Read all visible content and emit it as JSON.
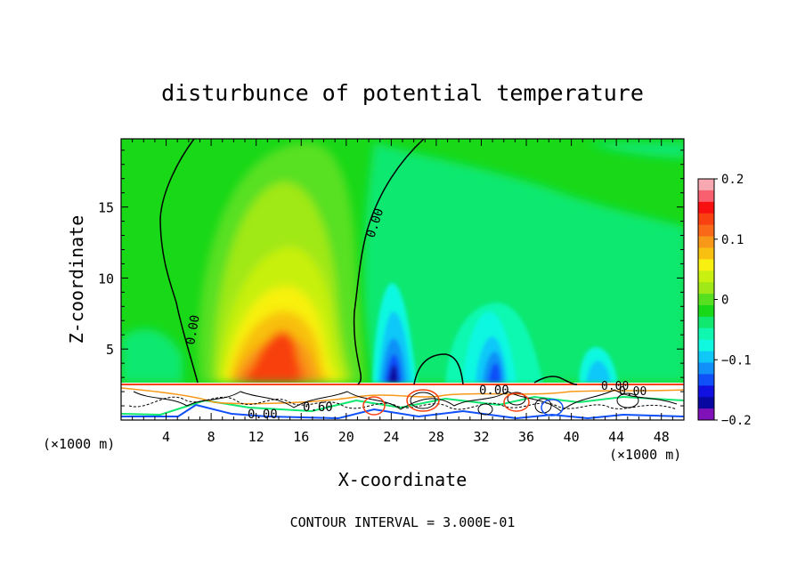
{
  "chart_data": {
    "type": "contour",
    "title": "disturbunce of potential temperature",
    "xlabel": "X-coordinate",
    "ylabel": "Z-coordinate",
    "x_unit_label": "(×1000 m)",
    "x_unit_label_right": "(×1000 m)",
    "xlim": [
      0,
      50
    ],
    "ylim": [
      0,
      19.8
    ],
    "x_ticks": [
      4,
      8,
      12,
      16,
      20,
      24,
      28,
      32,
      36,
      40,
      44,
      48
    ],
    "y_ticks": [
      5,
      10,
      15
    ],
    "footer": "CONTOUR INTERVAL = 3.000E-01",
    "colorbar": {
      "min": -0.2,
      "max": 0.2,
      "tick_labels": [
        "0.2",
        "0.1",
        "0",
        "−0.1",
        "−0.2"
      ],
      "tick_values": [
        0.2,
        0.1,
        0,
        -0.1,
        -0.2
      ],
      "colors": [
        "#f8a8b0",
        "#f86070",
        "#f81010",
        "#f84010",
        "#f86818",
        "#f89818",
        "#f8c010",
        "#f8f010",
        "#c8f010",
        "#a0e818",
        "#58e020",
        "#18d818",
        "#10e870",
        "#10f8b0",
        "#10f8e0",
        "#10c8f8",
        "#1090f8",
        "#1050f8",
        "#1010e0",
        "#0808a0",
        "#8010b8"
      ]
    },
    "contour_labels": [
      "0.00",
      "0.00",
      "0.00",
      "0.00",
      "0.00",
      "0.60",
      "0.00"
    ],
    "features": [
      {
        "name": "warm anomaly",
        "x": 14,
        "z": 5,
        "value": 0.15
      },
      {
        "name": "cold anomaly",
        "x": 23.5,
        "z": 4,
        "value": -0.12
      },
      {
        "name": "cold anomaly",
        "x": 33,
        "z": 4,
        "value": -0.11
      },
      {
        "name": "weak cold anomaly",
        "x": 42,
        "z": 4,
        "value": -0.06
      }
    ]
  }
}
